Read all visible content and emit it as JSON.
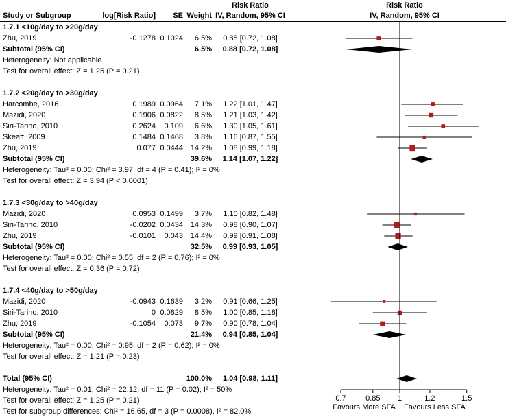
{
  "header": {
    "study_col": "Study or Subgroup",
    "log_rr_col": "log[Risk Ratio]",
    "se_col": "SE",
    "weight_col": "Weight",
    "effect_col_title": "Risk Ratio",
    "effect_col_subtitle": "IV, Random, 95% CI",
    "plot_col_title": "Risk Ratio",
    "plot_col_subtitle": "IV, Random, 95% CI"
  },
  "axis": {
    "ticks": [
      "0.7",
      "0.85",
      "1",
      "1.2",
      "1.5"
    ],
    "tick_values": [
      0.7,
      0.85,
      1,
      1.2,
      1.5
    ],
    "left_label": "Favours More SFA",
    "right_label": "Favours Less SFA"
  },
  "colors": {
    "marker": "#b01c1c",
    "diamond": "#000000",
    "line": "#000000"
  },
  "chart_data": {
    "type": "forest",
    "scale": "log",
    "null_value": 1,
    "groups": [
      {
        "title": "1.7.1 <10g/day to >20g/day",
        "studies": [
          {
            "name": "Zhu, 2019",
            "log_rr": "-0.1278",
            "se": "0.1024",
            "weight": "6.5%",
            "weight_pct": 6.5,
            "ci_text": "0.88 [0.72, 1.08]",
            "rr": 0.88,
            "ci": [
              0.72,
              1.08
            ]
          }
        ],
        "subtotal": {
          "label": "Subtotal (95% CI)",
          "weight": "6.5%",
          "ci_text": "0.88 [0.72, 1.08]",
          "rr": 0.88,
          "ci": [
            0.72,
            1.08
          ]
        },
        "heterogeneity": "Heterogeneity: Not applicable",
        "overall_effect": "Test for overall effect: Z = 1.25 (P = 0.21)"
      },
      {
        "title": "1.7.2 <20g/day to >30g/day",
        "studies": [
          {
            "name": "Harcombe, 2016",
            "log_rr": "0.1989",
            "se": "0.0964",
            "weight": "7.1%",
            "weight_pct": 7.1,
            "ci_text": "1.22 [1.01, 1.47]",
            "rr": 1.22,
            "ci": [
              1.01,
              1.47
            ]
          },
          {
            "name": "Mazidi, 2020",
            "log_rr": "0.1906",
            "se": "0.0822",
            "weight": "8.5%",
            "weight_pct": 8.5,
            "ci_text": "1.21 [1.03, 1.42]",
            "rr": 1.21,
            "ci": [
              1.03,
              1.42
            ]
          },
          {
            "name": "Siri-Tarino, 2010",
            "log_rr": "0.2624",
            "se": "0.109",
            "weight": "6.6%",
            "weight_pct": 6.6,
            "ci_text": "1.30 [1.05, 1.61]",
            "rr": 1.3,
            "ci": [
              1.05,
              1.61
            ]
          },
          {
            "name": "Skeaff, 2009",
            "log_rr": "0.1484",
            "se": "0.1468",
            "weight": "3.8%",
            "weight_pct": 3.8,
            "ci_text": "1.16 [0.87, 1.55]",
            "rr": 1.16,
            "ci": [
              0.87,
              1.55
            ]
          },
          {
            "name": "Zhu, 2019",
            "log_rr": "0.077",
            "se": "0.0444",
            "weight": "14.2%",
            "weight_pct": 14.2,
            "ci_text": "1.08 [0.99, 1.18]",
            "rr": 1.08,
            "ci": [
              0.99,
              1.18
            ]
          }
        ],
        "subtotal": {
          "label": "Subtotal (95% CI)",
          "weight": "39.6%",
          "ci_text": "1.14 [1.07, 1.22]",
          "rr": 1.14,
          "ci": [
            1.07,
            1.22
          ]
        },
        "heterogeneity": "Heterogeneity: Tau² = 0.00; Chi² = 3.97, df = 4 (P = 0.41); I² = 0%",
        "overall_effect": "Test for overall effect: Z = 3.94 (P < 0.0001)"
      },
      {
        "title": "1.7.3 <30g/day to >40g/day",
        "studies": [
          {
            "name": "Mazidi, 2020",
            "log_rr": "0.0953",
            "se": "0.1499",
            "weight": "3.7%",
            "weight_pct": 3.7,
            "ci_text": "1.10 [0.82, 1.48]",
            "rr": 1.1,
            "ci": [
              0.82,
              1.48
            ]
          },
          {
            "name": "Siri-Tarino, 2010",
            "log_rr": "-0.0202",
            "se": "0.0434",
            "weight": "14.3%",
            "weight_pct": 14.3,
            "ci_text": "0.98 [0.90, 1.07]",
            "rr": 0.98,
            "ci": [
              0.9,
              1.07
            ]
          },
          {
            "name": "Zhu, 2019",
            "log_rr": "-0.0101",
            "se": "0.043",
            "weight": "14.4%",
            "weight_pct": 14.4,
            "ci_text": "0.99 [0.91, 1.08]",
            "rr": 0.99,
            "ci": [
              0.91,
              1.08
            ]
          }
        ],
        "subtotal": {
          "label": "Subtotal (95% CI)",
          "weight": "32.5%",
          "ci_text": "0.99 [0.93, 1.05]",
          "rr": 0.99,
          "ci": [
            0.93,
            1.05
          ]
        },
        "heterogeneity": "Heterogeneity: Tau² = 0.00; Chi² = 0.55, df = 2 (P = 0.76); I² = 0%",
        "overall_effect": "Test for overall effect: Z = 0.36 (P = 0.72)"
      },
      {
        "title": "1.7.4 <40g/day to >50g/day",
        "studies": [
          {
            "name": "Mazidi, 2020",
            "log_rr": "-0.0943",
            "se": "0.1639",
            "weight": "3.2%",
            "weight_pct": 3.2,
            "ci_text": "0.91 [0.66, 1.25]",
            "rr": 0.91,
            "ci": [
              0.66,
              1.25
            ]
          },
          {
            "name": "Siri-Tarino, 2010",
            "log_rr": "0",
            "se": "0.0829",
            "weight": "8.5%",
            "weight_pct": 8.5,
            "ci_text": "1.00 [0.85, 1.18]",
            "rr": 1.0,
            "ci": [
              0.85,
              1.18
            ]
          },
          {
            "name": "Zhu, 2019",
            "log_rr": "-0.1054",
            "se": "0.073",
            "weight": "9.7%",
            "weight_pct": 9.7,
            "ci_text": "0.90 [0.78, 1.04]",
            "rr": 0.9,
            "ci": [
              0.78,
              1.04
            ]
          }
        ],
        "subtotal": {
          "label": "Subtotal (95% CI)",
          "weight": "21.4%",
          "ci_text": "0.94 [0.85, 1.04]",
          "rr": 0.94,
          "ci": [
            0.85,
            1.04
          ]
        },
        "heterogeneity": "Heterogeneity: Tau² = 0.00; Chi² = 0.95, df = 2 (P = 0.62); I² = 0%",
        "overall_effect": "Test for overall effect: Z = 1.21 (P = 0.23)"
      }
    ],
    "total": {
      "label": "Total (95% CI)",
      "weight": "100.0%",
      "ci_text": "1.04 [0.98, 1.11]",
      "rr": 1.04,
      "ci": [
        0.98,
        1.11
      ],
      "heterogeneity": "Heterogeneity: Tau² = 0.01; Chi² = 22.12, df = 11 (P = 0.02); I² = 50%",
      "overall_effect": "Test for overall effect: Z = 1.25 (P = 0.21)",
      "subgroup_differences": "Test for subgroup differences: Chi² = 16.65, df = 3 (P = 0.0008), I² = 82.0%"
    }
  }
}
